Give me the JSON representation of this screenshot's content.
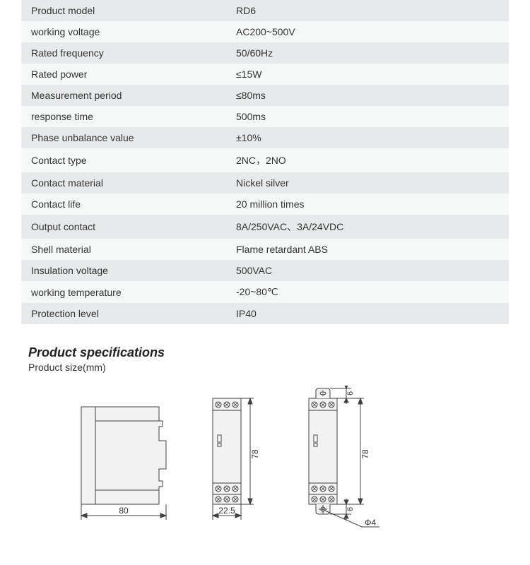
{
  "table": {
    "row_bg_odd": "#e8e9ea",
    "row_bg_even": "#f7f8f8",
    "label_fontsize": 14,
    "label_color": "#333333",
    "rows": [
      {
        "label": "Product model",
        "value": "RD6"
      },
      {
        "label": "working voltage",
        "value": "AC200~500V"
      },
      {
        "label": "Rated frequency",
        "value": "50/60Hz"
      },
      {
        "label": "Rated power",
        "value": "≤15W"
      },
      {
        "label": "Measurement period",
        "value": "≤80ms"
      },
      {
        "label": "response time",
        "value": "500ms"
      },
      {
        "label": "Phase unbalance value",
        "value": "±10%"
      },
      {
        "label": "Contact type",
        "value": "2NC，2NO"
      },
      {
        "label": "Contact material",
        "value": "Nickel silver"
      },
      {
        "label": "Contact life",
        "value": "20 million times"
      },
      {
        "label": "Output contact",
        "value": "8A/250VAC、3A/24VDC"
      },
      {
        "label": "Shell material",
        "value": "Flame retardant ABS"
      },
      {
        "label": "Insulation voltage",
        "value": "500VAC"
      },
      {
        "label": "working temperature",
        "value": "-20~80℃"
      },
      {
        "label": "Protection level",
        "value": "IP40"
      }
    ]
  },
  "section": {
    "title": "Product specifications",
    "subtitle": "Product size(mm)"
  },
  "drawings": {
    "stroke": "#404040",
    "fill": "#f2f2f2",
    "dim_color": "#404040",
    "side": {
      "width_label": "80"
    },
    "front": {
      "width_label": "22.5",
      "height_label": "78"
    },
    "back": {
      "height_label": "78",
      "tab_h_label": "6",
      "hole_label": "Φ4"
    }
  }
}
